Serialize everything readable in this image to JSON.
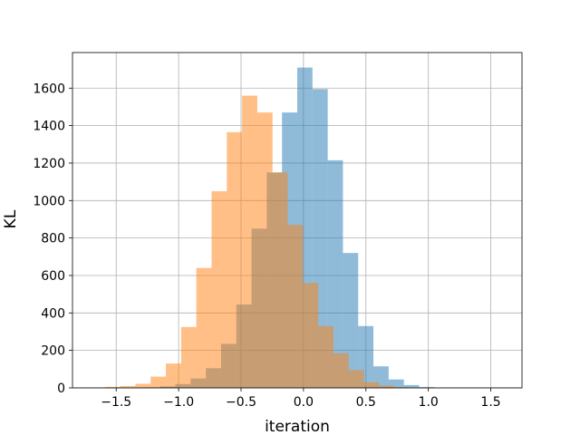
{
  "chart_data": {
    "type": "histogram",
    "title": "",
    "xlabel": "iteration",
    "ylabel": "KL",
    "xlim": [
      -1.85,
      1.75
    ],
    "ylim": [
      0,
      1790
    ],
    "xticks": [
      -1.5,
      -1.0,
      -0.5,
      0.0,
      0.5,
      1.0,
      1.5
    ],
    "xtick_labels": [
      "−1.5",
      "−1.0",
      "−0.5",
      "0.0",
      "0.5",
      "1.0",
      "1.5"
    ],
    "yticks": [
      0,
      200,
      400,
      600,
      800,
      1000,
      1200,
      1400,
      1600
    ],
    "ytick_labels": [
      "0",
      "200",
      "400",
      "600",
      "800",
      "1000",
      "1200",
      "1400",
      "1600"
    ],
    "grid": true,
    "legend": false,
    "series": [
      {
        "color": "#1f77b4",
        "alpha": 0.5,
        "bin_start": -1.27,
        "bin_width": 0.122,
        "counts": [
          3,
          8,
          20,
          50,
          105,
          235,
          445,
          850,
          1150,
          1470,
          1710,
          1595,
          1215,
          720,
          330,
          115,
          45,
          15,
          4
        ]
      },
      {
        "color": "#ff7f0e",
        "alpha": 0.5,
        "bin_start": -1.59,
        "bin_width": 0.122,
        "counts": [
          5,
          10,
          22,
          60,
          130,
          325,
          640,
          1050,
          1365,
          1560,
          1470,
          1150,
          870,
          560,
          330,
          185,
          95,
          30,
          12,
          4
        ]
      }
    ]
  }
}
